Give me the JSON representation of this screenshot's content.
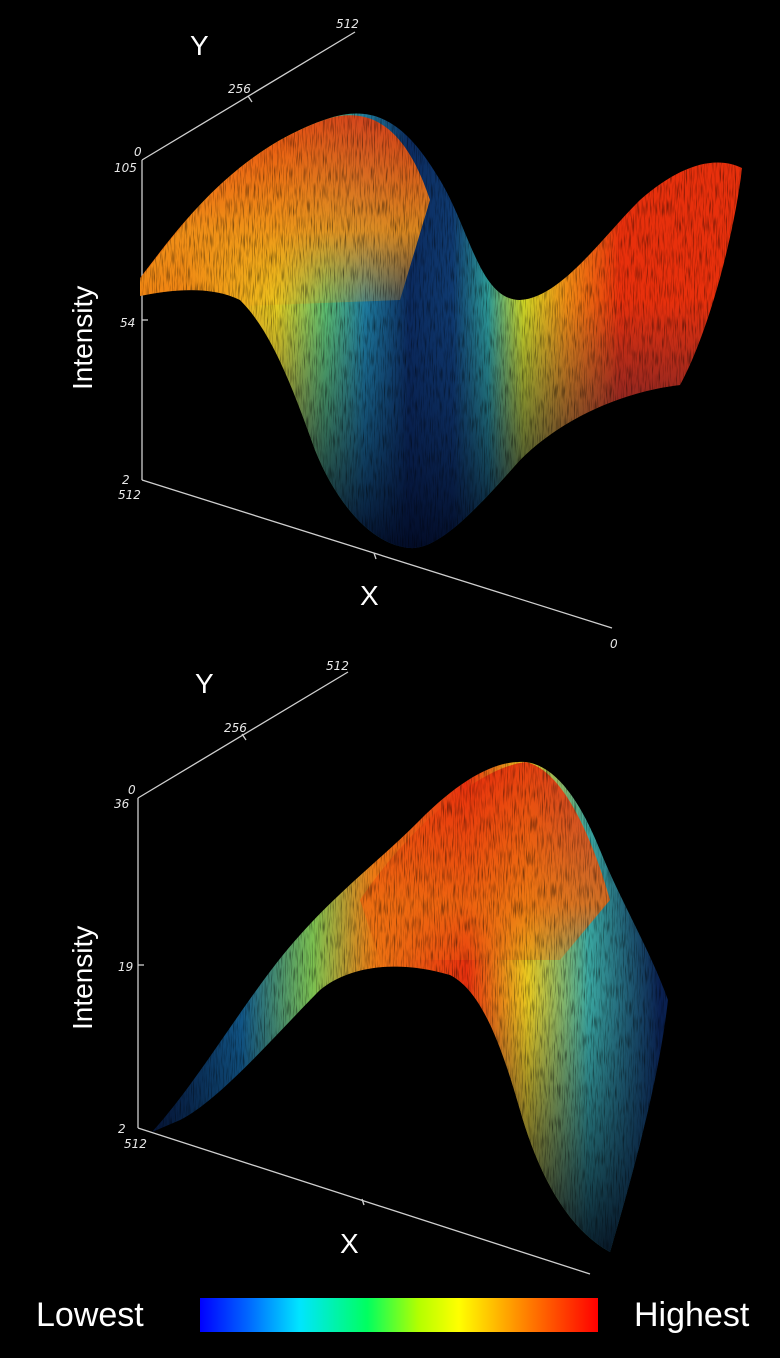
{
  "chart_data": [
    {
      "type": "surface",
      "xlabel": "X",
      "ylabel": "Y",
      "zlabel": "Intensity",
      "x_ticks": [
        "512",
        "0"
      ],
      "y_ticks": [
        "0",
        "256",
        "512"
      ],
      "z_ticks": [
        "105",
        "54",
        "2"
      ],
      "zlim": [
        2,
        105
      ],
      "shape": "saddle with high ridge at back-left, deep valley in middle, rising to high at front-right",
      "colormap": "jet"
    },
    {
      "type": "surface",
      "xlabel": "X",
      "ylabel": "Y",
      "zlabel": "Intensity",
      "x_ticks": [
        "512"
      ],
      "y_ticks": [
        "0",
        "256",
        "512"
      ],
      "z_ticks": [
        "36",
        "19",
        "2"
      ],
      "zlim": [
        2,
        36
      ],
      "shape": "single peak (hill) centered, low at edges",
      "colormap": "jet"
    }
  ],
  "colorbar": {
    "low_label": "Lowest",
    "high_label": "Highest",
    "colors": [
      "#0000ff",
      "#00ffff",
      "#00ff00",
      "#ffff00",
      "#ff8000",
      "#ff0000"
    ]
  }
}
